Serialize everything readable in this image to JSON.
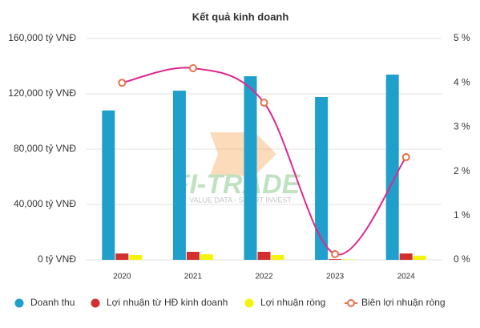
{
  "chart_data": {
    "type": "bar-line",
    "title": "Kết quả kinh doanh",
    "watermark": "FI-TRADE",
    "watermark_tagline": "VALUE DATA - SMART INVEST",
    "categories": [
      "2020",
      "2021",
      "2022",
      "2023",
      "2024"
    ],
    "series": [
      {
        "name": "Doanh thu",
        "color": "#1f9fcb",
        "type": "bar",
        "values": [
          108000,
          122300,
          132700,
          117700,
          133900
        ]
      },
      {
        "name": "Lợi nhuận từ HĐ kinh doanh",
        "color": "#d32f2f",
        "type": "bar",
        "values": [
          4600,
          5800,
          5800,
          500,
          4600
        ]
      },
      {
        "name": "Lợi nhuận ròng",
        "color": "#f4f40a",
        "type": "bar",
        "values": [
          3500,
          4000,
          3500,
          300,
          3000
        ]
      },
      {
        "name": "Biên lợi nhuận ròng",
        "color": "#e0288e",
        "marker_color": "#e8724a",
        "type": "line",
        "axis": "y2",
        "values": [
          4.0,
          4.33,
          3.55,
          0.13,
          2.32
        ]
      }
    ],
    "ylim": [
      0,
      160000
    ],
    "yticks": [
      {
        "value": 0,
        "label": "0 tỷ VNĐ"
      },
      {
        "value": 40000,
        "label": "40,000 tỷ VNĐ"
      },
      {
        "value": 80000,
        "label": "80,000 tỷ VNĐ"
      },
      {
        "value": 120000,
        "label": "120,000 tỷ VNĐ"
      },
      {
        "value": 160000,
        "label": "160,000 tỷ VNĐ"
      }
    ],
    "y2lim": [
      0,
      5
    ],
    "y2ticks": [
      {
        "value": 0,
        "label": "0 %"
      },
      {
        "value": 1,
        "label": "1 %"
      },
      {
        "value": 2,
        "label": "2 %"
      },
      {
        "value": 3,
        "label": "3 %"
      },
      {
        "value": 4,
        "label": "4 %"
      },
      {
        "value": 5,
        "label": "5 %"
      }
    ],
    "grid": true
  }
}
